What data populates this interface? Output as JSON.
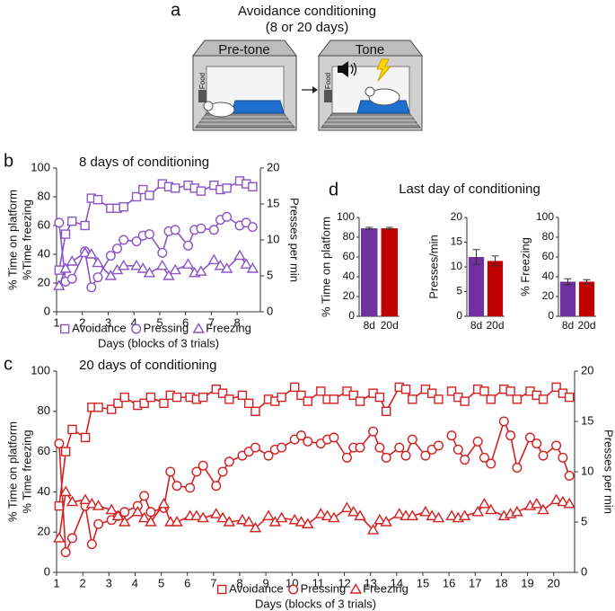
{
  "panel_labels": [
    "a",
    "b",
    "c",
    "d"
  ],
  "diagram": {
    "title": "Avoidance conditioning",
    "subtitle": "(8 or 20 days)",
    "left_box": "Pre-tone",
    "right_box": "Tone",
    "food": "Food"
  },
  "panel_d_title": "Last day of conditioning",
  "chart_data": [
    {
      "type": "line",
      "title": "8 days of conditioning",
      "xlabel": "Days (blocks of 3 trials)",
      "ylabel": [
        "% Time on platform",
        "%Time freezing"
      ],
      "y2label": "Presses per min",
      "xlim": [
        1,
        8.9
      ],
      "xticks": [
        1,
        2,
        3,
        4,
        5,
        6,
        7,
        8
      ],
      "ylim": [
        0,
        100
      ],
      "yticks": [
        0,
        20,
        40,
        60,
        80,
        100
      ],
      "y2lim": [
        0,
        20
      ],
      "y2ticks": [
        0,
        5,
        10,
        15,
        20
      ],
      "legend": "bottom",
      "x": [
        1.1,
        1.35,
        1.6,
        2.1,
        2.35,
        2.6,
        3.1,
        3.35,
        3.6,
        4.1,
        4.35,
        4.6,
        5.1,
        5.35,
        5.6,
        6.1,
        6.35,
        6.6,
        7.1,
        7.35,
        7.6,
        8.1,
        8.35,
        8.6
      ],
      "series": [
        {
          "name": "Avoidance",
          "color": "#8a55c8",
          "marker": "square",
          "values": [
            29,
            54,
            63,
            60,
            79,
            78,
            72,
            72,
            73,
            80,
            85,
            81,
            89,
            87,
            86,
            88,
            86,
            84,
            88,
            85,
            86,
            91,
            89,
            87
          ]
        },
        {
          "name": "Pressing",
          "color": "#8a55c8",
          "marker": "circle",
          "axis": "y2",
          "values": [
            12.4,
            4.2,
            4.6,
            8.4,
            3.4,
            4.8,
            7.8,
            8.8,
            10,
            9.8,
            10.6,
            10.8,
            8.2,
            11.2,
            11.4,
            9.2,
            11.4,
            11.6,
            11.4,
            12.8,
            13.2,
            12,
            12.4,
            11.8
          ]
        },
        {
          "name": "Freezing",
          "color": "#8a55c8",
          "marker": "triangle",
          "values": [
            18,
            30,
            35,
            41,
            40,
            34,
            25,
            29,
            32,
            32,
            30,
            27,
            32,
            25,
            29,
            33,
            27,
            28,
            36,
            32,
            30,
            39,
            33,
            30
          ]
        }
      ]
    },
    {
      "type": "line",
      "title": "20 days of conditioning",
      "xlabel": "Days (blocks of 3 trials)",
      "ylabel": [
        "% Time on platform",
        "% Time freezing"
      ],
      "y2label": "Presses per min",
      "xlim": [
        1,
        20.8
      ],
      "xticks": [
        1,
        2,
        3,
        4,
        5,
        6,
        7,
        8,
        9,
        10,
        11,
        12,
        13,
        14,
        15,
        16,
        17,
        18,
        19,
        20
      ],
      "ylim": [
        0,
        100
      ],
      "yticks": [
        0,
        20,
        40,
        60,
        80,
        100
      ],
      "y2lim": [
        0,
        20
      ],
      "y2ticks": [
        0,
        5,
        10,
        15,
        20
      ],
      "legend": "bottom",
      "x": [
        1.1,
        1.35,
        1.6,
        2.1,
        2.35,
        2.6,
        3.1,
        3.35,
        3.6,
        4.1,
        4.35,
        4.6,
        5.1,
        5.35,
        5.6,
        6.1,
        6.35,
        6.6,
        7.1,
        7.35,
        7.6,
        8.1,
        8.35,
        8.6,
        9.1,
        9.35,
        9.6,
        10.1,
        10.35,
        10.6,
        11.1,
        11.35,
        11.6,
        12.1,
        12.35,
        12.6,
        13.1,
        13.35,
        13.6,
        14.1,
        14.35,
        14.6,
        15.1,
        15.35,
        15.6,
        16.1,
        16.35,
        16.6,
        17.1,
        17.35,
        17.6,
        18.1,
        18.35,
        18.6,
        19.1,
        19.35,
        19.6,
        20.1,
        20.35,
        20.6
      ],
      "series": [
        {
          "name": "Avoidance",
          "color": "#d42020",
          "marker": "square",
          "values": [
            33,
            60,
            71,
            67,
            82,
            82,
            81,
            84,
            87,
            83,
            84,
            87,
            84,
            88,
            87,
            87,
            86,
            87,
            91,
            89,
            86,
            88,
            84,
            80,
            86,
            85,
            87,
            92,
            88,
            85,
            90,
            86,
            86,
            90,
            88,
            85,
            89,
            87,
            80,
            92,
            91,
            86,
            91,
            89,
            86,
            90,
            87,
            85,
            91,
            90,
            86,
            91,
            90,
            86,
            90,
            88,
            86,
            92,
            89,
            87
          ]
        },
        {
          "name": "Pressing",
          "color": "#d42020",
          "marker": "circle",
          "axis": "y2",
          "values": [
            12.8,
            2,
            3.4,
            6.6,
            2.8,
            4.8,
            5.2,
            5.6,
            6,
            6.6,
            7.6,
            6,
            6.4,
            10,
            8.6,
            8.4,
            10,
            10.6,
            8.6,
            10,
            11,
            11.6,
            12,
            12.4,
            11.6,
            12.2,
            12.4,
            13.2,
            13.6,
            13,
            12.8,
            13.2,
            13.4,
            11.4,
            12.4,
            12.4,
            14,
            12.4,
            11.4,
            12.4,
            11.6,
            13.2,
            11.6,
            12.2,
            12.6,
            13.6,
            12.2,
            11.2,
            13,
            11.4,
            10.8,
            15,
            13.6,
            10.4,
            13.4,
            12.8,
            11.6,
            12.6,
            11.4,
            9.6
          ]
        },
        {
          "name": "Freezing",
          "color": "#d42020",
          "marker": "triangle",
          "values": [
            17,
            40,
            35,
            36,
            34,
            33,
            31,
            28,
            25,
            30,
            27,
            25,
            34,
            25,
            25,
            28,
            28,
            27,
            29,
            27,
            25,
            26,
            25,
            22,
            28,
            25,
            27,
            26,
            25,
            24,
            29,
            28,
            27,
            32,
            30,
            28,
            21,
            26,
            25,
            29,
            28,
            28,
            30,
            28,
            27,
            28,
            27,
            28,
            30,
            34,
            31,
            28,
            29,
            30,
            33,
            34,
            31,
            36,
            35,
            34
          ]
        }
      ]
    },
    {
      "type": "bar",
      "ylabel": "% Time on platform",
      "categories": [
        "8d",
        "20d"
      ],
      "values": [
        89,
        89
      ],
      "errors": [
        1,
        1
      ],
      "colors": [
        "#7030a0",
        "#c00000"
      ],
      "ylim": [
        0,
        100
      ],
      "yticks": [
        0,
        20,
        40,
        60,
        80,
        100
      ]
    },
    {
      "type": "bar",
      "ylabel": "Presses/min",
      "categories": [
        "8d",
        "20d"
      ],
      "values": [
        12,
        11.2
      ],
      "errors": [
        1.5,
        1
      ],
      "colors": [
        "#7030a0",
        "#c00000"
      ],
      "ylim": [
        0,
        20
      ],
      "yticks": [
        0,
        5,
        10,
        15,
        20
      ]
    },
    {
      "type": "bar",
      "ylabel": "% Freezing",
      "categories": [
        "8d",
        "20d"
      ],
      "values": [
        35,
        35
      ],
      "errors": [
        3,
        2
      ],
      "colors": [
        "#7030a0",
        "#c00000"
      ],
      "ylim": [
        0,
        100
      ],
      "yticks": [
        0,
        20,
        40,
        60,
        80,
        100
      ]
    }
  ]
}
